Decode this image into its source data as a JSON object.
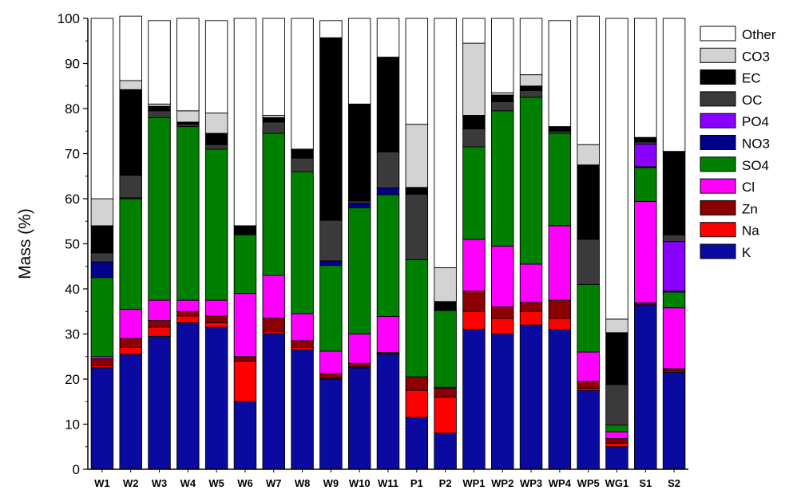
{
  "chart_data": {
    "type": "stacked-bar",
    "title": "",
    "xlabel": "",
    "ylabel": "Mass (%)",
    "ylim": [
      0,
      100
    ],
    "yticks": [
      "0",
      "10",
      "20",
      "30",
      "40",
      "50",
      "60",
      "70",
      "80",
      "90",
      "100"
    ],
    "legend_position": "right",
    "categories": [
      "W1",
      "W2",
      "W3",
      "W4",
      "W5",
      "W6",
      "W7",
      "W8",
      "W9",
      "W10",
      "W11",
      "P1",
      "P2",
      "WP1",
      "WP2",
      "WP3",
      "WP4",
      "WP5",
      "WG1",
      "S1",
      "S2"
    ],
    "series": [
      {
        "name": "K",
        "color": "#0a0aa0",
        "values": [
          22.5,
          25.5,
          29.5,
          32.5,
          31.5,
          15.0,
          30.0,
          26.5,
          20.0,
          22.5,
          25.5,
          11.5,
          8.0,
          31.0,
          30.0,
          32.0,
          31.0,
          17.5,
          5.0,
          36.5,
          21.5
        ]
      },
      {
        "name": "Na",
        "color": "#ff0000",
        "values": [
          0.5,
          1.5,
          2.0,
          1.5,
          1.0,
          9.0,
          0.5,
          0.5,
          0.2,
          0.2,
          0.2,
          6.0,
          8.0,
          4.0,
          3.5,
          3.0,
          2.5,
          0.5,
          0.8,
          0.2,
          0.3
        ]
      },
      {
        "name": "Zn",
        "color": "#8b0000",
        "values": [
          1.5,
          2.0,
          1.5,
          1.0,
          1.5,
          1.0,
          3.0,
          1.5,
          1.0,
          0.8,
          0.2,
          3.0,
          2.0,
          4.5,
          2.5,
          2.0,
          4.0,
          1.5,
          1.0,
          0.2,
          0.5
        ]
      },
      {
        "name": "Cl",
        "color": "#ff00ff",
        "values": [
          0.5,
          6.5,
          4.5,
          2.5,
          3.5,
          14.0,
          9.5,
          6.0,
          5.0,
          6.5,
          8.0,
          0.0,
          0.2,
          11.5,
          13.5,
          8.5,
          16.5,
          6.5,
          1.5,
          22.5,
          13.5
        ]
      },
      {
        "name": "SO4",
        "color": "#008000",
        "values": [
          17.5,
          24.5,
          40.5,
          38.5,
          33.5,
          13.0,
          31.5,
          31.5,
          19.0,
          28.0,
          27.0,
          26.0,
          17.0,
          20.5,
          30.0,
          37.0,
          20.5,
          15.0,
          1.5,
          7.5,
          3.5
        ]
      },
      {
        "name": "NO3",
        "color": "#00008b",
        "values": [
          3.5,
          0.2,
          0.0,
          0.0,
          0.0,
          0.0,
          0.0,
          0.0,
          1.0,
          1.0,
          1.5,
          0.0,
          0.0,
          0.0,
          0.0,
          0.0,
          0.0,
          0.0,
          0.0,
          0.2,
          0.2
        ]
      },
      {
        "name": "PO4",
        "color": "#8a00ff",
        "values": [
          0.0,
          0.0,
          0.0,
          0.0,
          0.0,
          0.0,
          0.0,
          0.0,
          0.0,
          0.0,
          0.0,
          0.0,
          0.0,
          0.0,
          0.0,
          0.0,
          0.0,
          0.0,
          0.0,
          5.0,
          11.0
        ]
      },
      {
        "name": "OC",
        "color": "#3a3a3a",
        "values": [
          2.0,
          5.0,
          1.5,
          0.5,
          1.0,
          0.0,
          2.5,
          3.0,
          9.0,
          0.5,
          8.0,
          14.5,
          0.0,
          4.0,
          2.0,
          1.5,
          0.5,
          10.0,
          9.0,
          0.5,
          1.5
        ]
      },
      {
        "name": "EC",
        "color": "#000000",
        "values": [
          6.0,
          19.0,
          1.0,
          0.5,
          2.5,
          2.0,
          1.0,
          2.0,
          40.5,
          21.5,
          21.0,
          1.5,
          2.0,
          3.0,
          1.5,
          1.0,
          1.0,
          16.5,
          11.5,
          1.0,
          18.5
        ]
      },
      {
        "name": "CO3",
        "color": "#d3d3d3",
        "values": [
          6.0,
          2.0,
          0.5,
          2.5,
          4.5,
          0.0,
          0.5,
          0.0,
          0.0,
          0.0,
          0.0,
          14.0,
          7.5,
          16.0,
          0.5,
          2.5,
          0.0,
          4.5,
          3.0,
          0.0,
          0.0
        ]
      },
      {
        "name": "Other",
        "color": "#ffffff",
        "values": [
          40.0,
          14.3,
          18.5,
          20.5,
          20.5,
          46.0,
          21.5,
          29.0,
          3.8,
          19.0,
          8.6,
          23.5,
          55.3,
          5.5,
          16.5,
          12.5,
          23.5,
          28.5,
          66.7,
          26.4,
          29.5
        ]
      }
    ]
  }
}
